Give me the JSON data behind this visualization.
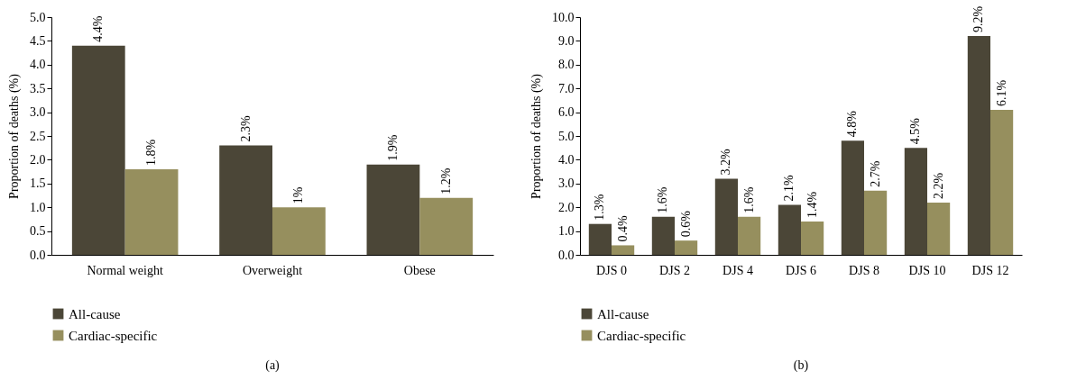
{
  "chart_data": [
    {
      "type": "bar",
      "ylabel": "Proportion of deaths (%)",
      "annotations": [
        "(a)"
      ],
      "categories": [
        "Normal weight",
        "Overweight",
        "Obese"
      ],
      "series": [
        {
          "name": "All-cause",
          "color": "#4b4637",
          "values": [
            4.4,
            2.3,
            1.9
          ],
          "value_labels": [
            "4.4%",
            "2.3%",
            "1.9%"
          ]
        },
        {
          "name": "Cardiac-specific",
          "color": "#968f5e",
          "values": [
            1.8,
            1.0,
            1.2
          ],
          "value_labels": [
            "1.8%",
            "1%",
            "1.2%"
          ]
        }
      ],
      "ylim": [
        0,
        5
      ],
      "yticks": [
        {
          "value": 0,
          "label": "0.0"
        },
        {
          "value": 0.5,
          "label": "0.5"
        },
        {
          "value": 1,
          "label": "1.0"
        },
        {
          "value": 1.5,
          "label": "1.5"
        },
        {
          "value": 2,
          "label": "2.0"
        },
        {
          "value": 2.5,
          "label": "2.5"
        },
        {
          "value": 3,
          "label": "3.0"
        },
        {
          "value": 3.5,
          "label": "3.5"
        },
        {
          "value": 4,
          "label": "4.0"
        },
        {
          "value": 4.5,
          "label": "4.5"
        },
        {
          "value": 5,
          "label": "5.0"
        }
      ],
      "legend": "bottom left"
    },
    {
      "type": "bar",
      "ylabel": "Proportion of deaths (%)",
      "annotations": [
        "(b)"
      ],
      "categories": [
        "DJS 0",
        "DJS 2",
        "DJS 4",
        "DJS 6",
        "DJS 8",
        "DJS 10",
        "DJS 12"
      ],
      "series": [
        {
          "name": "All-cause",
          "color": "#4b4637",
          "values": [
            1.3,
            1.6,
            3.2,
            2.1,
            4.8,
            4.5,
            9.2
          ],
          "value_labels": [
            "1.3%",
            "1.6%",
            "3.2%",
            "2.1%",
            "4.8%",
            "4.5%",
            "9.2%"
          ]
        },
        {
          "name": "Cardiac-specific",
          "color": "#968f5e",
          "values": [
            0.4,
            0.6,
            1.6,
            1.4,
            2.7,
            2.2,
            6.1
          ],
          "value_labels": [
            "0.4%",
            "0.6%",
            "1.6%",
            "1.4%",
            "2.7%",
            "2.2%",
            "6.1%"
          ]
        }
      ],
      "ylim": [
        0,
        10
      ],
      "yticks": [
        {
          "value": 0,
          "label": "0.0"
        },
        {
          "value": 1,
          "label": "1.0"
        },
        {
          "value": 2,
          "label": "2.0"
        },
        {
          "value": 3,
          "label": "3.0"
        },
        {
          "value": 4,
          "label": "4.0"
        },
        {
          "value": 5,
          "label": "5.0"
        },
        {
          "value": 6,
          "label": "6.0"
        },
        {
          "value": 7,
          "label": "7.0"
        },
        {
          "value": 8,
          "label": "8.0"
        },
        {
          "value": 9,
          "label": "9.0"
        },
        {
          "value": 10,
          "label": "10.0"
        }
      ],
      "legend": "bottom left"
    }
  ]
}
